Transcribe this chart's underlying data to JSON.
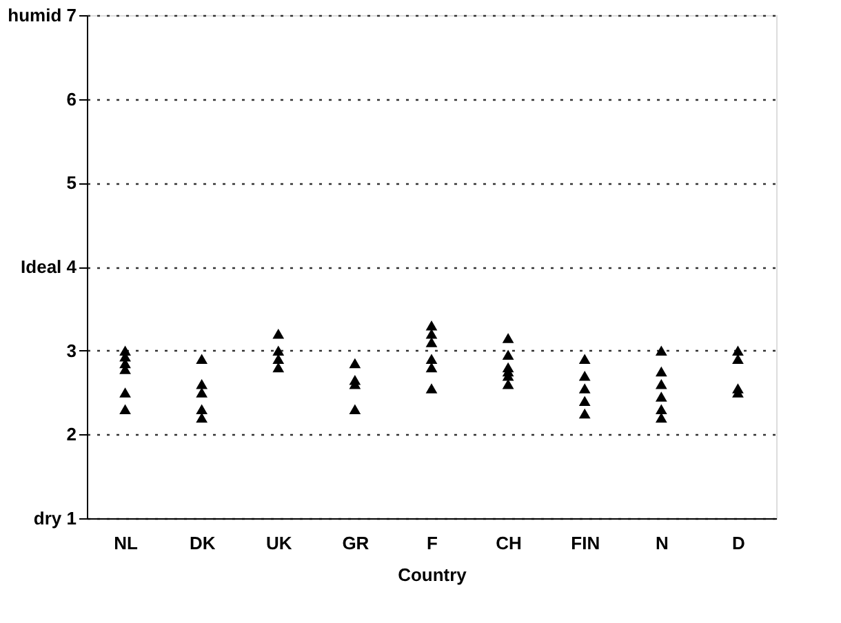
{
  "chart_data": {
    "type": "scatter",
    "xlabel": "Country",
    "categories": [
      "NL",
      "DK",
      "UK",
      "GR",
      "F",
      "CH",
      "FIN",
      "N",
      "D"
    ],
    "series": [
      {
        "color": "#000000",
        "x": [
          "NL",
          "NL",
          "NL",
          "NL",
          "NL",
          "NL",
          "DK",
          "DK",
          "DK",
          "DK",
          "DK",
          "UK",
          "UK",
          "UK",
          "UK",
          "GR",
          "GR",
          "GR",
          "GR",
          "F",
          "F",
          "F",
          "F",
          "F",
          "F",
          "CH",
          "CH",
          "CH",
          "CH",
          "CH",
          "CH",
          "FIN",
          "FIN",
          "FIN",
          "FIN",
          "FIN",
          "N",
          "N",
          "N",
          "N",
          "N",
          "N",
          "D",
          "D",
          "D",
          "D"
        ],
        "values": [
          3.0,
          2.93,
          2.85,
          2.78,
          2.5,
          2.3,
          2.9,
          2.6,
          2.5,
          2.3,
          2.2,
          3.2,
          3.0,
          2.9,
          2.8,
          2.85,
          2.65,
          2.6,
          2.3,
          3.3,
          3.2,
          3.1,
          2.9,
          2.8,
          2.55,
          3.15,
          2.95,
          2.8,
          2.75,
          2.7,
          2.6,
          2.9,
          2.7,
          2.55,
          2.4,
          2.25,
          3.0,
          2.75,
          2.6,
          2.45,
          2.3,
          2.2,
          3.0,
          2.9,
          2.55,
          2.5
        ]
      }
    ],
    "ylim": [
      1,
      7
    ],
    "yticks": [
      {
        "value": 1,
        "label": "dry 1"
      },
      2,
      3,
      {
        "value": 4,
        "label": "Ideal 4"
      },
      5,
      6,
      {
        "value": 7,
        "label": "humid 7"
      }
    ],
    "grid": "y",
    "marker": "triangle"
  }
}
